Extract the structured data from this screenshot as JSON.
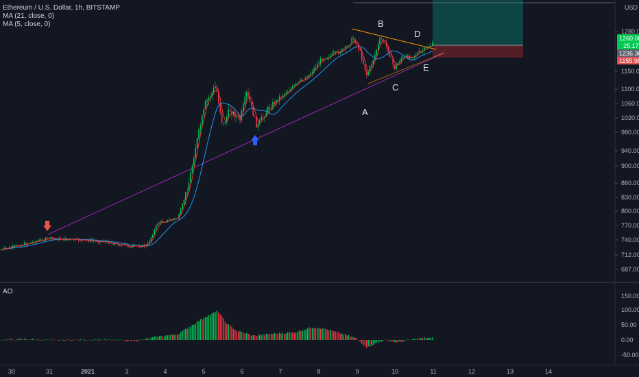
{
  "legend": {
    "symbol": "Ethereum / U.S. Dollar, 1h, BITSTAMP",
    "ma1": "MA (21, close, 0)",
    "ma2": "MA (5, close, 0)"
  },
  "oscillator": {
    "label": "AO"
  },
  "currency": "USD",
  "price_axis": {
    "ticks": [
      "1280.00",
      "1150.00",
      "1100.00",
      "1060.00",
      "1020.00",
      "980.00",
      "940.00",
      "900.00",
      "860.00",
      "830.00",
      "800.00",
      "770.00",
      "740.00",
      "712.00",
      "687.00"
    ]
  },
  "ao_axis": {
    "ticks": [
      "150.00",
      "100.00",
      "50.00",
      "0.00",
      "-50.00"
    ]
  },
  "time_axis": {
    "ticks": [
      "30",
      "31",
      "2021",
      "3",
      "4",
      "5",
      "6",
      "7",
      "8",
      "9",
      "10",
      "11",
      "12",
      "13",
      "14"
    ]
  },
  "badges": {
    "price_last": "1260.00",
    "price_change": "25.17",
    "price_target": "1236.30",
    "price_stop": "1155.98"
  },
  "annotations": {
    "a": "A",
    "b": "B",
    "c": "C",
    "d": "D",
    "e": "E"
  },
  "colors": {
    "background": "#131722",
    "up": "#26a69a",
    "candle_up": "#00c853",
    "candle_down": "#f23645",
    "ma21": "#2196f3",
    "ma5": "#e53935",
    "trendline": "#9c27b0",
    "triangle_top": "#ff9800",
    "long_profit": "#0d4d4a",
    "long_loss": "#4a1e24",
    "arrow_red": "#ef5350",
    "arrow_blue": "#2962ff"
  },
  "icons": {
    "sell_arrow": "down-arrow-icon",
    "buy_arrow": "up-arrow-icon"
  }
}
